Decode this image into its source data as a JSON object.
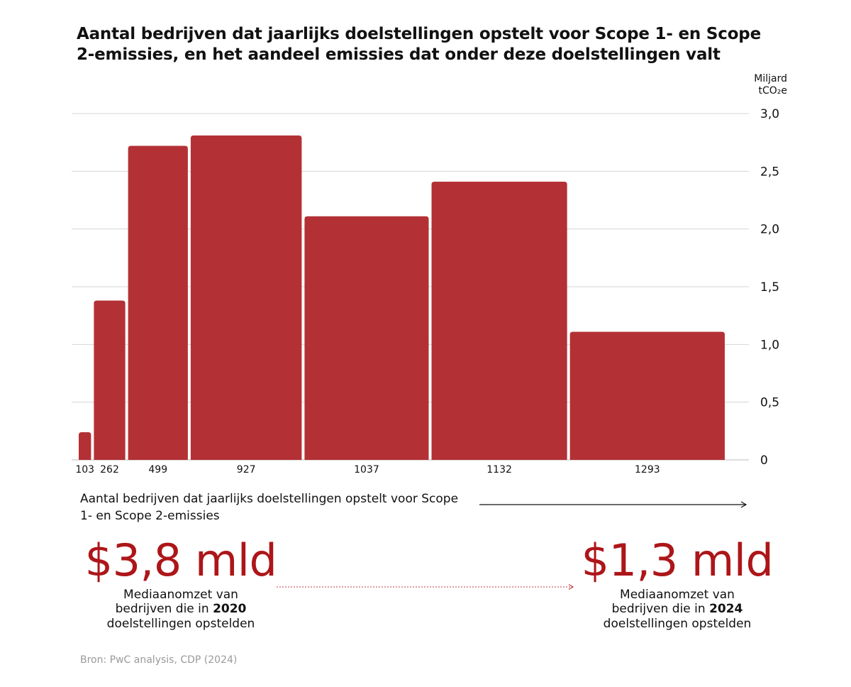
{
  "title": "Aantal bedrijven dat jaarlijks doelstellingen opstelt voor Scope 1- en Scope 2-emissies, en het aandeel emissies dat onder deze doelstellingen valt",
  "chart_data": {
    "type": "bar",
    "variable_width": true,
    "categories": [
      "103",
      "262",
      "499",
      "927",
      "1037",
      "1132",
      "1293"
    ],
    "widths": [
      103,
      262,
      499,
      927,
      1037,
      1132,
      1293
    ],
    "values": [
      0.24,
      1.38,
      2.72,
      2.81,
      2.11,
      2.41,
      1.11
    ],
    "ylabel_line1": "Miljard",
    "ylabel_line2": "tCO₂e",
    "ylim": [
      0,
      3.0
    ],
    "yticks": [
      0,
      0.5,
      1.0,
      1.5,
      2.0,
      2.5,
      3.0
    ],
    "ytick_labels": [
      "0",
      "0,5",
      "1,0",
      "1,5",
      "2,0",
      "2,5",
      "3,0"
    ],
    "xlabel": "Aantal bedrijven dat jaarlijks doelstellingen opstelt voor Scope 1- en Scope 2-emissies",
    "bar_color": "#b33135",
    "grid": true
  },
  "stats": {
    "left": {
      "value": "$3,8 mld",
      "desc_line1": "Mediaanomzet van",
      "desc_line2_prefix": "bedrijven die in ",
      "desc_year": "2020",
      "desc_line3": "doelstellingen opstelden"
    },
    "right": {
      "value": "$1,3 mld",
      "desc_line1": "Mediaanomzet van",
      "desc_line2_prefix": "bedrijven die in ",
      "desc_year": "2024",
      "desc_line3": "doelstellingen opstelden"
    }
  },
  "accent_color": "#ad1619",
  "source": "Bron: PwC analysis, CDP (2024)"
}
